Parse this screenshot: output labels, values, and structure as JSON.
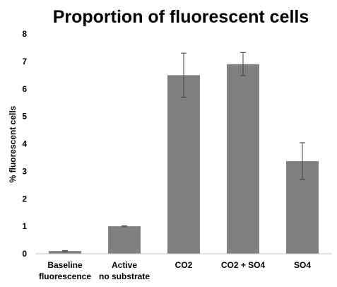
{
  "chart_data": {
    "type": "bar",
    "title": "Proportion of fluorescent cells",
    "xlabel": "",
    "ylabel": "% fluorescent cells",
    "categories": [
      [
        "Baseline",
        "fluorescence"
      ],
      [
        "Active",
        "no substrate"
      ],
      [
        "CO2"
      ],
      [
        "CO2 + SO4"
      ],
      [
        "SO4"
      ]
    ],
    "values": [
      0.1,
      1.0,
      6.5,
      6.9,
      3.37
    ],
    "errors": [
      0.02,
      0.02,
      0.8,
      0.42,
      0.67
    ],
    "ylim": [
      0,
      8
    ],
    "yticks": [
      0,
      1,
      2,
      3,
      4,
      5,
      6,
      7,
      8
    ],
    "grid": false,
    "legend": "none",
    "colors": {
      "bar": "#808080",
      "error_bar": "#404040",
      "axis": "#bfbfbf"
    }
  }
}
